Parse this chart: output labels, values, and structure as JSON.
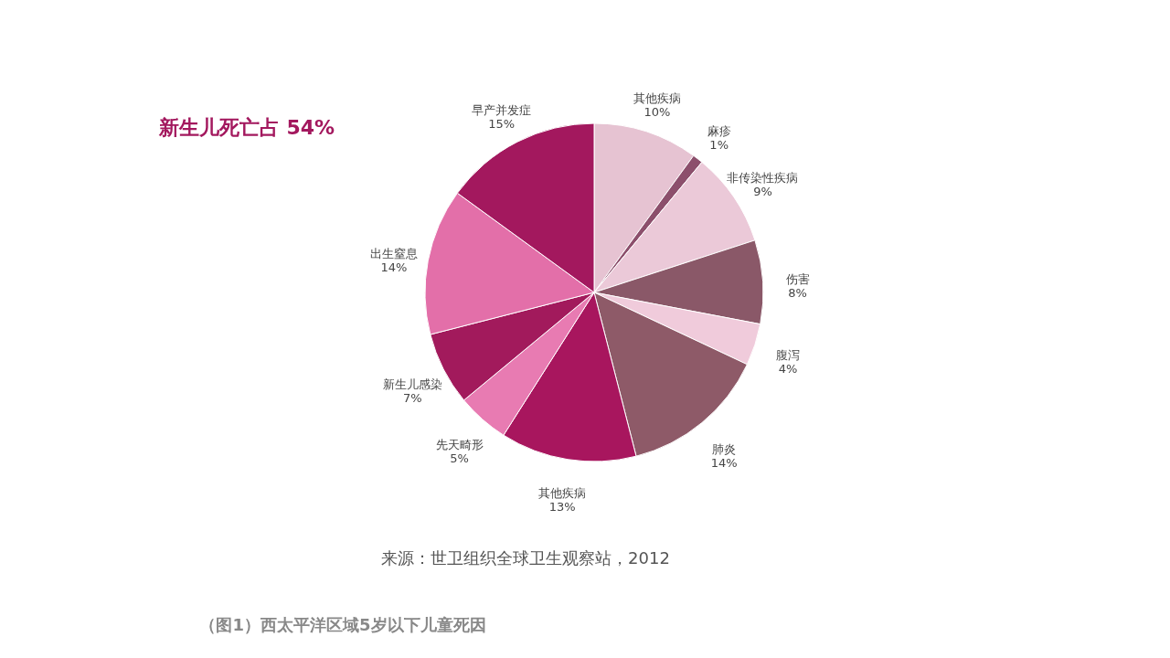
{
  "chart_data": {
    "type": "pie",
    "categories": [
      "其他疾病",
      "麻疹",
      "非传染性疾病",
      "伤害",
      "腹泻",
      "肺炎",
      "其他疾病",
      "先天畸形",
      "新生儿感染",
      "出生窒息",
      "早产并发症"
    ],
    "values": [
      10,
      1,
      9,
      8,
      4,
      14,
      13,
      5,
      7,
      14,
      15
    ],
    "colors": [
      "#e6c3d2",
      "#8c4f6c",
      "#ebc9d8",
      "#8a5868",
      "#f0cbdb",
      "#8e5a68",
      "#a8165e",
      "#e87bb2",
      "#a21a5c",
      "#e36fa9",
      "#a3185e"
    ],
    "value_labels": [
      "10%",
      "1%",
      "9%",
      "8%",
      "4%",
      "14%",
      "13%",
      "5%",
      "7%",
      "14%",
      "15%"
    ],
    "annotations": [
      "新生儿死亡占 54%",
      "来源：世卫组织全球卫生观察站，2012",
      "（图1）西太平洋区域5岁以下儿童死因"
    ]
  }
}
